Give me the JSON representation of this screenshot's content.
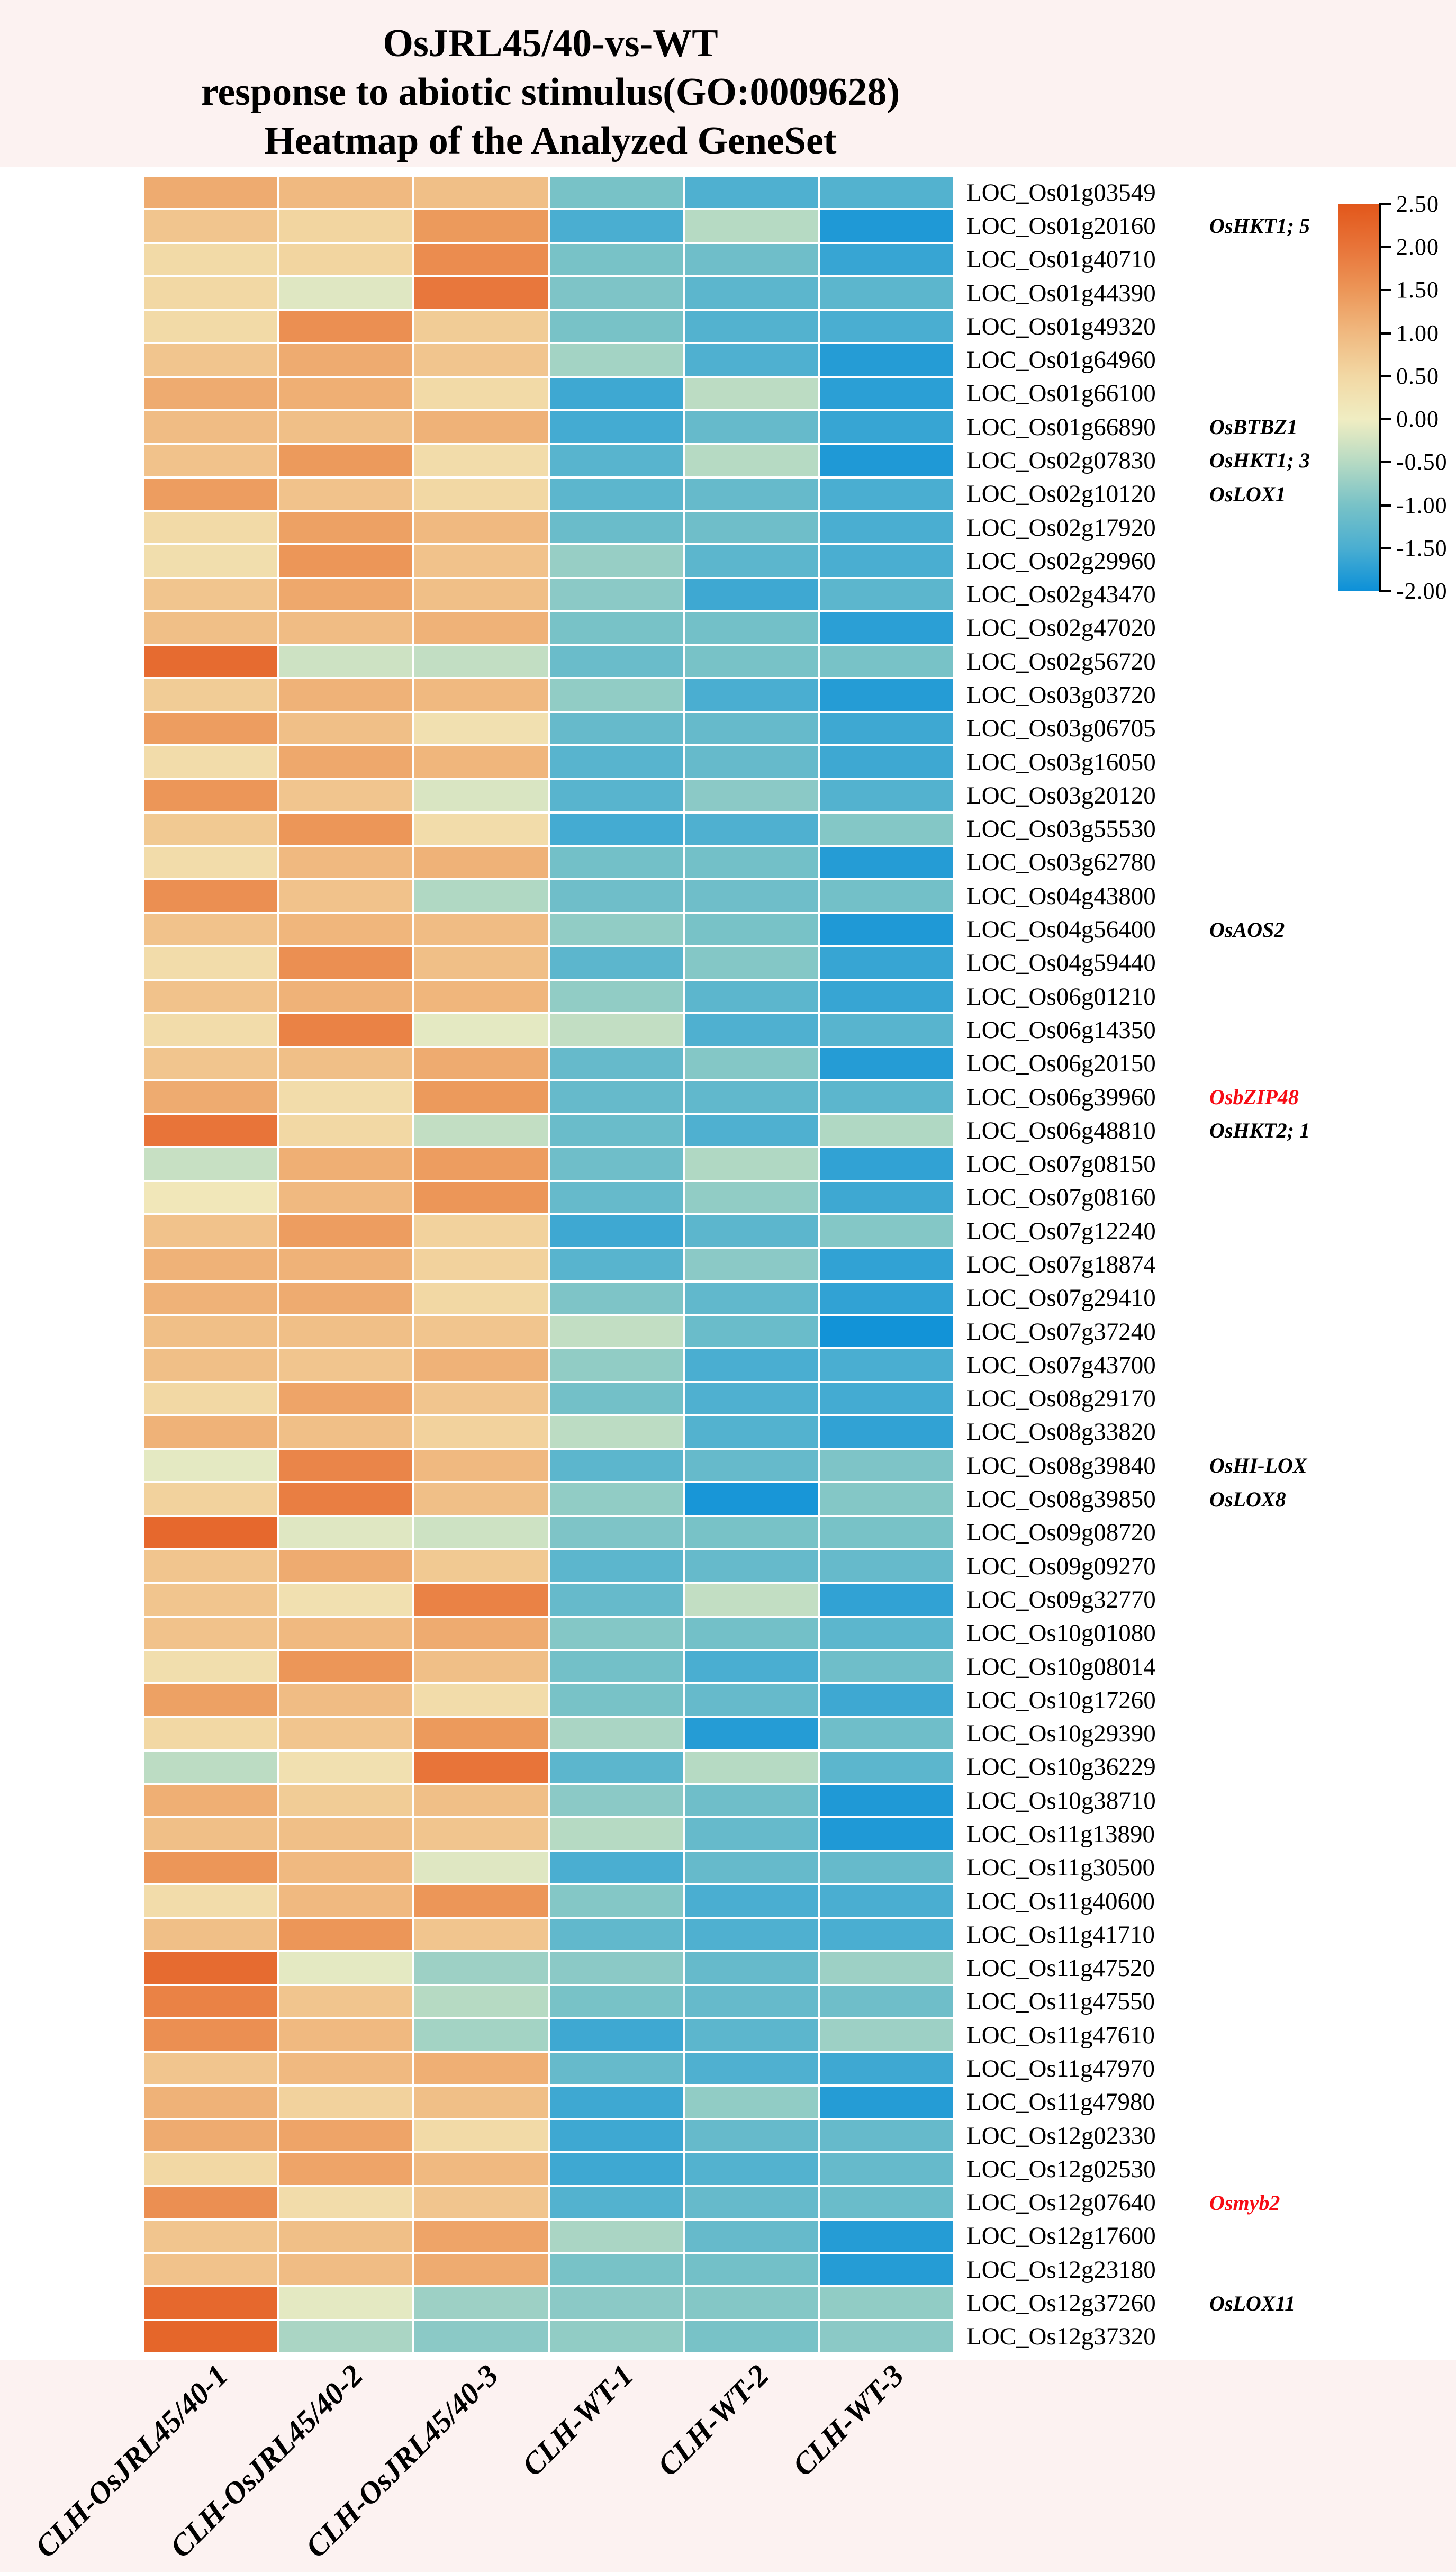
{
  "title": {
    "line1": "OsJRL45/40-vs-WT",
    "line2": "response to abiotic stimulus(GO:0009628)",
    "line3": "Heatmap of the Analyzed GeneSet"
  },
  "colors": {
    "background": "#fcf2f1",
    "plot_background": "#ffffff",
    "cell_gap": "#ffffff",
    "text": "#000000",
    "annotation_red": "#f70c15"
  },
  "chart_data": {
    "type": "heatmap",
    "title": "OsJRL45/40-vs-WT response to abiotic stimulus(GO:0009628) Heatmap of the Analyzed GeneSet",
    "legend_position": "right",
    "grid": "white gaps between cells",
    "columns": [
      "CLH-OsJRL45/40-1",
      "CLH-OsJRL45/40-2",
      "CLH-OsJRL45/40-3",
      "CLH-WT-1",
      "CLH-WT-2",
      "CLH-WT-3"
    ],
    "colorbar": {
      "max": 2.5,
      "min": -2.0,
      "ticks": [
        "2.50",
        "2.00",
        "1.50",
        "1.00",
        "0.50",
        "0.00",
        "-0.50",
        "-1.00",
        "-1.50",
        "-2.00"
      ],
      "stops": [
        {
          "v": 2.5,
          "c": "#E2571B"
        },
        {
          "v": 2.0,
          "c": "#E87439"
        },
        {
          "v": 1.5,
          "c": "#EC9658"
        },
        {
          "v": 1.0,
          "c": "#F0B980"
        },
        {
          "v": 0.5,
          "c": "#F2D8A4"
        },
        {
          "v": 0.0,
          "c": "#F0EDC2"
        },
        {
          "v": -0.5,
          "c": "#B6DAC3"
        },
        {
          "v": -1.0,
          "c": "#78C2C7"
        },
        {
          "v": -1.5,
          "c": "#4AAED1"
        },
        {
          "v": -2.0,
          "c": "#0C90D8"
        }
      ]
    },
    "rows": [
      {
        "gene": "LOC_Os01g03549",
        "annotation": "",
        "annotation_color": "#000000",
        "values": [
          1.2,
          1.0,
          0.9,
          -1.0,
          -1.45,
          -1.4
        ]
      },
      {
        "gene": "LOC_Os01g20160",
        "annotation": "OsHKT1; 5",
        "annotation_color": "#000000",
        "values": [
          0.8,
          0.55,
          1.45,
          -1.5,
          -0.5,
          -1.85
        ]
      },
      {
        "gene": "LOC_Os01g40710",
        "annotation": "",
        "annotation_color": "#000000",
        "values": [
          0.45,
          0.55,
          1.65,
          -1.0,
          -1.1,
          -1.65
        ]
      },
      {
        "gene": "LOC_Os01g44390",
        "annotation": "",
        "annotation_color": "#000000",
        "values": [
          0.5,
          -0.15,
          1.95,
          -0.95,
          -1.3,
          -1.3
        ]
      },
      {
        "gene": "LOC_Os01g49320",
        "annotation": "",
        "annotation_color": "#000000",
        "values": [
          0.45,
          1.6,
          0.7,
          -1.0,
          -1.4,
          -1.5
        ]
      },
      {
        "gene": "LOC_Os01g64960",
        "annotation": "",
        "annotation_color": "#000000",
        "values": [
          0.8,
          1.2,
          0.8,
          -0.65,
          -1.45,
          -1.8
        ]
      },
      {
        "gene": "LOC_Os01g66100",
        "annotation": "",
        "annotation_color": "#000000",
        "values": [
          1.2,
          1.15,
          0.45,
          -1.6,
          -0.45,
          -1.75
        ]
      },
      {
        "gene": "LOC_Os01g66890",
        "annotation": "OsBTBZ1",
        "annotation_color": "#000000",
        "values": [
          0.95,
          0.9,
          1.1,
          -1.55,
          -1.2,
          -1.65
        ]
      },
      {
        "gene": "LOC_Os02g07830",
        "annotation": "OsHKT1; 3",
        "annotation_color": "#000000",
        "values": [
          0.85,
          1.45,
          0.4,
          -1.35,
          -0.5,
          -1.85
        ]
      },
      {
        "gene": "LOC_Os02g10120",
        "annotation": "OsLOX1",
        "annotation_color": "#000000",
        "values": [
          1.4,
          0.85,
          0.5,
          -1.3,
          -1.2,
          -1.5
        ]
      },
      {
        "gene": "LOC_Os02g17920",
        "annotation": "",
        "annotation_color": "#000000",
        "values": [
          0.45,
          1.35,
          1.0,
          -1.15,
          -1.1,
          -1.5
        ]
      },
      {
        "gene": "LOC_Os02g29960",
        "annotation": "",
        "annotation_color": "#000000",
        "values": [
          0.35,
          1.5,
          0.85,
          -0.75,
          -1.3,
          -1.5
        ]
      },
      {
        "gene": "LOC_Os02g43470",
        "annotation": "",
        "annotation_color": "#000000",
        "values": [
          0.8,
          1.25,
          0.9,
          -0.85,
          -1.6,
          -1.3
        ]
      },
      {
        "gene": "LOC_Os02g47020",
        "annotation": "",
        "annotation_color": "#000000",
        "values": [
          0.9,
          0.95,
          1.1,
          -1.0,
          -1.05,
          -1.75
        ]
      },
      {
        "gene": "LOC_Os02g56720",
        "annotation": "",
        "annotation_color": "#000000",
        "values": [
          2.15,
          -0.3,
          -0.4,
          -1.15,
          -1.0,
          -1.0
        ]
      },
      {
        "gene": "LOC_Os03g03720",
        "annotation": "",
        "annotation_color": "#000000",
        "values": [
          0.7,
          1.1,
          1.0,
          -0.8,
          -1.5,
          -1.8
        ]
      },
      {
        "gene": "LOC_Os03g06705",
        "annotation": "",
        "annotation_color": "#000000",
        "values": [
          1.4,
          0.9,
          0.3,
          -1.2,
          -1.2,
          -1.6
        ]
      },
      {
        "gene": "LOC_Os03g16050",
        "annotation": "",
        "annotation_color": "#000000",
        "values": [
          0.4,
          1.25,
          1.05,
          -1.35,
          -1.2,
          -1.6
        ]
      },
      {
        "gene": "LOC_Os03g20120",
        "annotation": "",
        "annotation_color": "#000000",
        "values": [
          1.5,
          0.8,
          -0.2,
          -1.35,
          -0.85,
          -1.4
        ]
      },
      {
        "gene": "LOC_Os03g55530",
        "annotation": "",
        "annotation_color": "#000000",
        "values": [
          0.75,
          1.5,
          0.4,
          -1.55,
          -1.45,
          -0.9
        ]
      },
      {
        "gene": "LOC_Os03g62780",
        "annotation": "",
        "annotation_color": "#000000",
        "values": [
          0.4,
          1.0,
          1.1,
          -1.05,
          -1.05,
          -1.8
        ]
      },
      {
        "gene": "LOC_Os04g43800",
        "annotation": "",
        "annotation_color": "#000000",
        "values": [
          1.6,
          0.85,
          -0.55,
          -1.1,
          -1.1,
          -1.05
        ]
      },
      {
        "gene": "LOC_Os04g56400",
        "annotation": "OsAOS2",
        "annotation_color": "#000000",
        "values": [
          0.85,
          1.05,
          0.95,
          -0.8,
          -1.0,
          -1.85
        ]
      },
      {
        "gene": "LOC_Os04g59440",
        "annotation": "",
        "annotation_color": "#000000",
        "values": [
          0.4,
          1.6,
          0.9,
          -1.3,
          -0.9,
          -1.65
        ]
      },
      {
        "gene": "LOC_Os06g01210",
        "annotation": "",
        "annotation_color": "#000000",
        "values": [
          0.85,
          1.1,
          1.05,
          -0.8,
          -1.3,
          -1.65
        ]
      },
      {
        "gene": "LOC_Os06g14350",
        "annotation": "",
        "annotation_color": "#000000",
        "values": [
          0.4,
          1.8,
          -0.1,
          -0.4,
          -1.45,
          -1.35
        ]
      },
      {
        "gene": "LOC_Os06g20150",
        "annotation": "",
        "annotation_color": "#000000",
        "values": [
          0.8,
          0.9,
          1.2,
          -1.2,
          -0.9,
          -1.8
        ]
      },
      {
        "gene": "LOC_Os06g39960",
        "annotation": "OsbZIP48",
        "annotation_color": "#f70c15",
        "values": [
          1.2,
          0.4,
          1.45,
          -1.2,
          -1.25,
          -1.3
        ]
      },
      {
        "gene": "LOC_Os06g48810",
        "annotation": "OsHKT2; 1",
        "annotation_color": "#000000",
        "values": [
          2.0,
          0.5,
          -0.4,
          -1.15,
          -1.45,
          -0.55
        ]
      },
      {
        "gene": "LOC_Os07g08150",
        "annotation": "",
        "annotation_color": "#000000",
        "values": [
          -0.35,
          1.15,
          1.4,
          -1.1,
          -0.55,
          -1.7
        ]
      },
      {
        "gene": "LOC_Os07g08160",
        "annotation": "",
        "annotation_color": "#000000",
        "values": [
          0.15,
          1.0,
          1.5,
          -1.2,
          -0.8,
          -1.6
        ]
      },
      {
        "gene": "LOC_Os07g12240",
        "annotation": "",
        "annotation_color": "#000000",
        "values": [
          0.85,
          1.4,
          0.6,
          -1.6,
          -1.3,
          -0.9
        ]
      },
      {
        "gene": "LOC_Os07g18874",
        "annotation": "",
        "annotation_color": "#000000",
        "values": [
          1.1,
          1.1,
          0.6,
          -1.35,
          -0.85,
          -1.7
        ]
      },
      {
        "gene": "LOC_Os07g29410",
        "annotation": "",
        "annotation_color": "#000000",
        "values": [
          1.1,
          1.2,
          0.5,
          -0.95,
          -1.25,
          -1.7
        ]
      },
      {
        "gene": "LOC_Os07g37240",
        "annotation": "",
        "annotation_color": "#000000",
        "values": [
          0.9,
          0.9,
          0.8,
          -0.4,
          -1.15,
          -1.95
        ]
      },
      {
        "gene": "LOC_Os07g43700",
        "annotation": "",
        "annotation_color": "#000000",
        "values": [
          0.9,
          0.8,
          1.1,
          -0.8,
          -1.5,
          -1.5
        ]
      },
      {
        "gene": "LOC_Os08g29170",
        "annotation": "",
        "annotation_color": "#000000",
        "values": [
          0.5,
          1.3,
          0.8,
          -1.05,
          -1.45,
          -1.55
        ]
      },
      {
        "gene": "LOC_Os08g33820",
        "annotation": "",
        "annotation_color": "#000000",
        "values": [
          1.1,
          0.9,
          0.6,
          -0.45,
          -1.4,
          -1.7
        ]
      },
      {
        "gene": "LOC_Os08g39840",
        "annotation": "OsHI-LOX",
        "annotation_color": "#000000",
        "values": [
          -0.1,
          1.75,
          1.0,
          -1.3,
          -1.2,
          -0.95
        ]
      },
      {
        "gene": "LOC_Os08g39850",
        "annotation": "OsLOX8",
        "annotation_color": "#000000",
        "values": [
          0.6,
          1.85,
          0.9,
          -0.8,
          -1.9,
          -0.9
        ]
      },
      {
        "gene": "LOC_Os09g08720",
        "annotation": "",
        "annotation_color": "#000000",
        "values": [
          2.2,
          -0.15,
          -0.3,
          -0.95,
          -1.0,
          -1.0
        ]
      },
      {
        "gene": "LOC_Os09g09270",
        "annotation": "",
        "annotation_color": "#000000",
        "values": [
          0.8,
          1.2,
          0.75,
          -1.3,
          -1.2,
          -1.2
        ]
      },
      {
        "gene": "LOC_Os09g32770",
        "annotation": "",
        "annotation_color": "#000000",
        "values": [
          0.8,
          0.3,
          1.8,
          -1.2,
          -0.4,
          -1.7
        ]
      },
      {
        "gene": "LOC_Os10g01080",
        "annotation": "",
        "annotation_color": "#000000",
        "values": [
          0.85,
          1.0,
          1.2,
          -0.9,
          -1.05,
          -1.3
        ]
      },
      {
        "gene": "LOC_Os10g08014",
        "annotation": "",
        "annotation_color": "#000000",
        "values": [
          0.35,
          1.5,
          0.9,
          -1.05,
          -1.5,
          -1.1
        ]
      },
      {
        "gene": "LOC_Os10g17260",
        "annotation": "",
        "annotation_color": "#000000",
        "values": [
          1.35,
          0.95,
          0.4,
          -1.0,
          -1.2,
          -1.6
        ]
      },
      {
        "gene": "LOC_Os10g29390",
        "annotation": "",
        "annotation_color": "#000000",
        "values": [
          0.5,
          0.8,
          1.45,
          -0.6,
          -1.8,
          -1.1
        ]
      },
      {
        "gene": "LOC_Os10g36229",
        "annotation": "",
        "annotation_color": "#000000",
        "values": [
          -0.45,
          0.3,
          2.0,
          -1.3,
          -0.5,
          -1.3
        ]
      },
      {
        "gene": "LOC_Os10g38710",
        "annotation": "",
        "annotation_color": "#000000",
        "values": [
          1.15,
          0.7,
          0.9,
          -0.85,
          -1.1,
          -1.85
        ]
      },
      {
        "gene": "LOC_Os11g13890",
        "annotation": "",
        "annotation_color": "#000000",
        "values": [
          0.9,
          0.9,
          0.8,
          -0.5,
          -1.2,
          -1.85
        ]
      },
      {
        "gene": "LOC_Os11g30500",
        "annotation": "",
        "annotation_color": "#000000",
        "values": [
          1.5,
          1.0,
          -0.15,
          -1.5,
          -1.2,
          -1.2
        ]
      },
      {
        "gene": "LOC_Os11g40600",
        "annotation": "",
        "annotation_color": "#000000",
        "values": [
          0.4,
          1.0,
          1.5,
          -0.9,
          -1.5,
          -1.5
        ]
      },
      {
        "gene": "LOC_Os11g41710",
        "annotation": "",
        "annotation_color": "#000000",
        "values": [
          0.9,
          1.5,
          0.8,
          -1.25,
          -1.45,
          -1.5
        ]
      },
      {
        "gene": "LOC_Os11g47520",
        "annotation": "",
        "annotation_color": "#000000",
        "values": [
          2.15,
          -0.1,
          -0.7,
          -0.85,
          -1.2,
          -0.7
        ]
      },
      {
        "gene": "LOC_Os11g47550",
        "annotation": "",
        "annotation_color": "#000000",
        "values": [
          1.8,
          0.8,
          -0.5,
          -1.0,
          -1.2,
          -1.1
        ]
      },
      {
        "gene": "LOC_Os11g47610",
        "annotation": "",
        "annotation_color": "#000000",
        "values": [
          1.6,
          1.0,
          -0.65,
          -1.6,
          -1.3,
          -0.7
        ]
      },
      {
        "gene": "LOC_Os11g47970",
        "annotation": "",
        "annotation_color": "#000000",
        "values": [
          0.8,
          1.0,
          1.15,
          -1.2,
          -1.45,
          -1.6
        ]
      },
      {
        "gene": "LOC_Os11g47980",
        "annotation": "",
        "annotation_color": "#000000",
        "values": [
          1.1,
          0.6,
          0.9,
          -1.6,
          -0.8,
          -1.8
        ]
      },
      {
        "gene": "LOC_Os12g02330",
        "annotation": "",
        "annotation_color": "#000000",
        "values": [
          1.2,
          1.3,
          0.45,
          -1.6,
          -1.2,
          -1.2
        ]
      },
      {
        "gene": "LOC_Os12g02530",
        "annotation": "",
        "annotation_color": "#000000",
        "values": [
          0.5,
          1.3,
          1.0,
          -1.6,
          -1.4,
          -1.2
        ]
      },
      {
        "gene": "LOC_Os12g07640",
        "annotation": "Osmyb2",
        "annotation_color": "#f70c15",
        "values": [
          1.6,
          0.4,
          0.8,
          -1.4,
          -1.2,
          -1.15
        ]
      },
      {
        "gene": "LOC_Os12g17600",
        "annotation": "",
        "annotation_color": "#000000",
        "values": [
          0.8,
          0.9,
          1.3,
          -0.6,
          -1.2,
          -1.8
        ]
      },
      {
        "gene": "LOC_Os12g23180",
        "annotation": "",
        "annotation_color": "#000000",
        "values": [
          0.85,
          0.95,
          1.2,
          -1.0,
          -1.05,
          -1.8
        ]
      },
      {
        "gene": "LOC_Os12g37260",
        "annotation": "OsLOX11",
        "annotation_color": "#000000",
        "values": [
          2.2,
          -0.1,
          -0.7,
          -0.85,
          -0.9,
          -0.8
        ]
      },
      {
        "gene": "LOC_Os12g37320",
        "annotation": "",
        "annotation_color": "#000000",
        "values": [
          2.25,
          -0.6,
          -0.85,
          -0.8,
          -1.0,
          -0.85
        ]
      }
    ]
  }
}
